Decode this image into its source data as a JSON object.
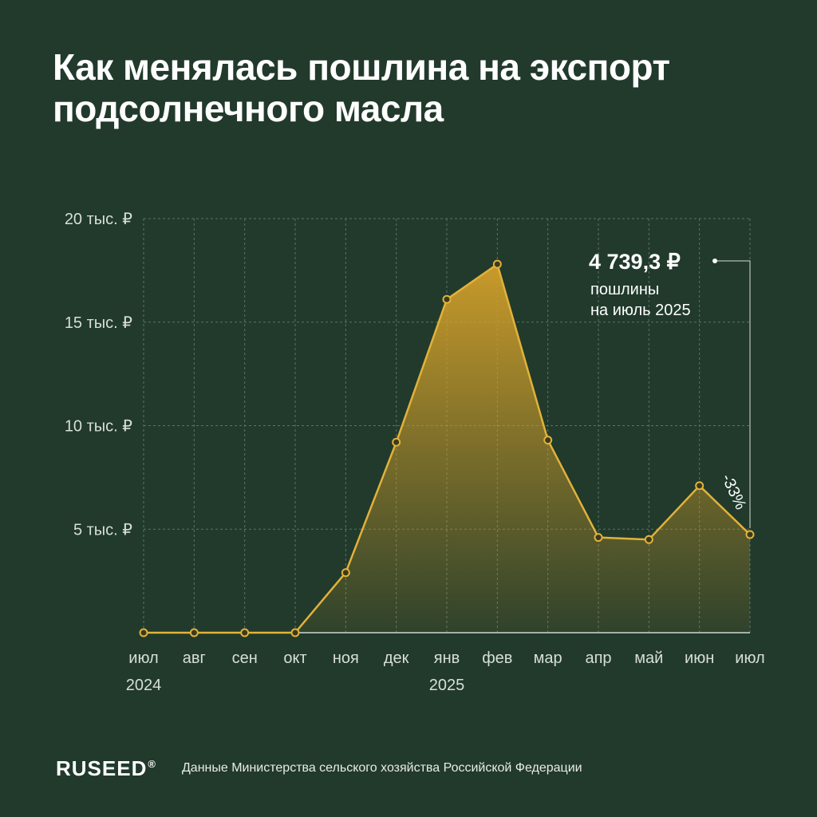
{
  "title_lines": [
    "Как менялась пошлина на экспорт",
    "подсолнечного масла"
  ],
  "footer": {
    "logo": "RUSEED",
    "logo_mark": "®",
    "source": "Данные Министерства сельского хозяйства Российской Федерации"
  },
  "colors": {
    "background": "#213a2b",
    "line": "#e2b23a",
    "fill_top": "#d19f2a",
    "grid": "#5d7266",
    "text": "#ffffff"
  },
  "chart_data": {
    "type": "area",
    "title": "Как менялась пошлина на экспорт подсолнечного масла",
    "x": [
      "июл",
      "авг",
      "сен",
      "окт",
      "ноя",
      "дек",
      "янв",
      "фев",
      "мар",
      "апр",
      "май",
      "июн",
      "июл"
    ],
    "year_labels": [
      {
        "index": 0,
        "label": "2024"
      },
      {
        "index": 6,
        "label": "2025"
      }
    ],
    "values": [
      0,
      0,
      0,
      0,
      2900,
      9200,
      16100,
      17800,
      9300,
      4600,
      4500,
      7100,
      4739.3
    ],
    "y_ticks": [
      {
        "value": 5000,
        "label": "5 тыс. ₽"
      },
      {
        "value": 10000,
        "label": "10 тыс. ₽"
      },
      {
        "value": 15000,
        "label": "15 тыс. ₽"
      },
      {
        "value": 20000,
        "label": "20 тыс. ₽"
      }
    ],
    "ylim": [
      0,
      20000
    ],
    "grid": true,
    "annotation": {
      "value": "4 739,3 ₽",
      "lines": [
        "пошлины",
        "на июль 2025"
      ],
      "change": "-33%"
    }
  }
}
